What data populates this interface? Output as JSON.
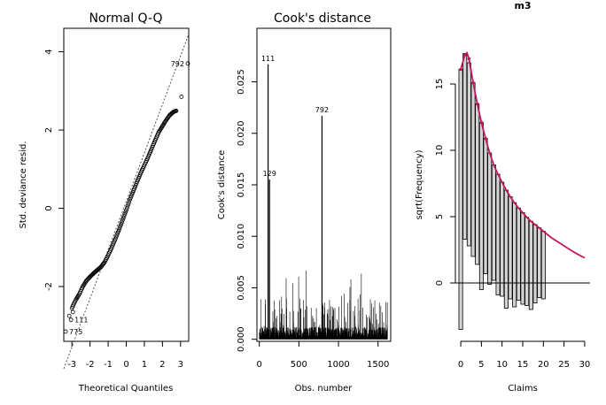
{
  "chart_data": [
    {
      "type": "scatter",
      "title": "Normal Q-Q",
      "xlabel": "Theoretical Quantiles",
      "ylabel": "Std. deviance resid.",
      "xlim": [
        -3.45,
        3.45
      ],
      "ylim": [
        -3.4,
        4.6
      ],
      "xticks": [
        -3,
        -2,
        -1,
        0,
        1,
        2,
        3
      ],
      "yticks": [
        -2,
        0,
        2,
        4
      ],
      "reference_line": {
        "x": [
          -3.45,
          3.45
        ],
        "y": [
          -4.1,
          4.45
        ],
        "style": "dotted"
      },
      "points_curve": {
        "x": [
          -3.0,
          -2.8,
          -2.6,
          -2.4,
          -2.2,
          -2.0,
          -1.8,
          -1.6,
          -1.4,
          -1.2,
          -1.0,
          -0.8,
          -0.6,
          -0.4,
          -0.2,
          0.0,
          0.2,
          0.4,
          0.6,
          0.8,
          1.0,
          1.2,
          1.4,
          1.6,
          1.8,
          2.0,
          2.2,
          2.4,
          2.6,
          2.8
        ],
        "y": [
          -2.55,
          -2.35,
          -2.2,
          -2.0,
          -1.85,
          -1.75,
          -1.66,
          -1.58,
          -1.5,
          -1.38,
          -1.2,
          -1.0,
          -0.78,
          -0.55,
          -0.3,
          -0.05,
          0.22,
          0.45,
          0.68,
          0.9,
          1.1,
          1.3,
          1.52,
          1.74,
          1.95,
          2.1,
          2.25,
          2.38,
          2.46,
          2.5
        ]
      },
      "labeled_points": [
        {
          "label": "792",
          "x": 3.4,
          "y": 3.7
        },
        {
          "label": "111",
          "x": -3.05,
          "y": -2.85
        },
        {
          "label": "775",
          "x": -3.35,
          "y": -3.15
        }
      ],
      "extra_points": [
        {
          "x": 3.05,
          "y": 2.85
        },
        {
          "x": -3.15,
          "y": -2.75
        },
        {
          "x": -2.95,
          "y": -2.65
        }
      ]
    },
    {
      "type": "bar",
      "title": "Cook's distance",
      "xlabel": "Obs. number",
      "ylabel": "Cook's distance",
      "xlim": [
        -30,
        1660
      ],
      "ylim": [
        -0.0002,
        0.0302
      ],
      "xticks": [
        0,
        500,
        1000,
        1500
      ],
      "yticks": [
        0.0,
        0.005,
        0.01,
        0.015,
        0.02,
        0.025
      ],
      "ytick_labels": [
        "0.000",
        "0.005",
        "0.010",
        "0.015",
        "0.020",
        "0.025"
      ],
      "n_obs": 1620,
      "highlighted": [
        {
          "label": "111",
          "x": 111,
          "y": 0.0267
        },
        {
          "label": "129",
          "x": 129,
          "y": 0.0155
        },
        {
          "label": "792",
          "x": 792,
          "y": 0.0217
        }
      ]
    },
    {
      "type": "bar",
      "title": "m3",
      "xlabel": "Claims",
      "ylabel": "sqrt(Frequency)",
      "xlim": [
        -1.3,
        31.3
      ],
      "ylim": [
        -4.4,
        19.2
      ],
      "xticks": [
        0,
        5,
        10,
        15,
        20,
        25,
        30
      ],
      "yticks": [
        0,
        5,
        10,
        15
      ],
      "expected_sqrt_freq": [
        16.1,
        17.3,
        16.6,
        15.1,
        13.5,
        12.1,
        10.9,
        9.8,
        8.9,
        8.2,
        7.6,
        7.0,
        6.5,
        6.05,
        5.65,
        5.3,
        4.95,
        4.65,
        4.4,
        4.15,
        3.9
      ],
      "hanging_bottoms": [
        -3.5,
        3.3,
        2.8,
        2.0,
        1.4,
        -0.5,
        0.7,
        -0.1,
        0.2,
        -0.9,
        -1.0,
        -1.9,
        -1.2,
        -1.8,
        -1.3,
        -1.6,
        -1.7,
        -2.0,
        -1.5,
        -1.1,
        -1.2
      ],
      "fitted_curve_x": [
        0,
        1,
        1.5,
        2,
        3,
        4,
        5,
        6,
        7,
        8,
        9,
        10,
        11,
        12,
        13,
        14,
        15,
        16,
        17,
        18,
        19,
        20,
        21,
        22,
        23,
        24,
        25,
        26,
        27,
        28,
        29,
        30
      ],
      "fitted_curve_y": [
        16.1,
        17.2,
        17.35,
        16.9,
        15.1,
        13.5,
        12.1,
        10.9,
        9.8,
        8.9,
        8.2,
        7.6,
        7.0,
        6.5,
        6.05,
        5.65,
        5.3,
        4.95,
        4.65,
        4.4,
        4.15,
        3.9,
        3.65,
        3.4,
        3.2,
        3.0,
        2.8,
        2.6,
        2.4,
        2.22,
        2.05,
        1.9
      ],
      "colors": {
        "curve": "#c2185b",
        "bars": "#d3d3d3"
      }
    }
  ]
}
